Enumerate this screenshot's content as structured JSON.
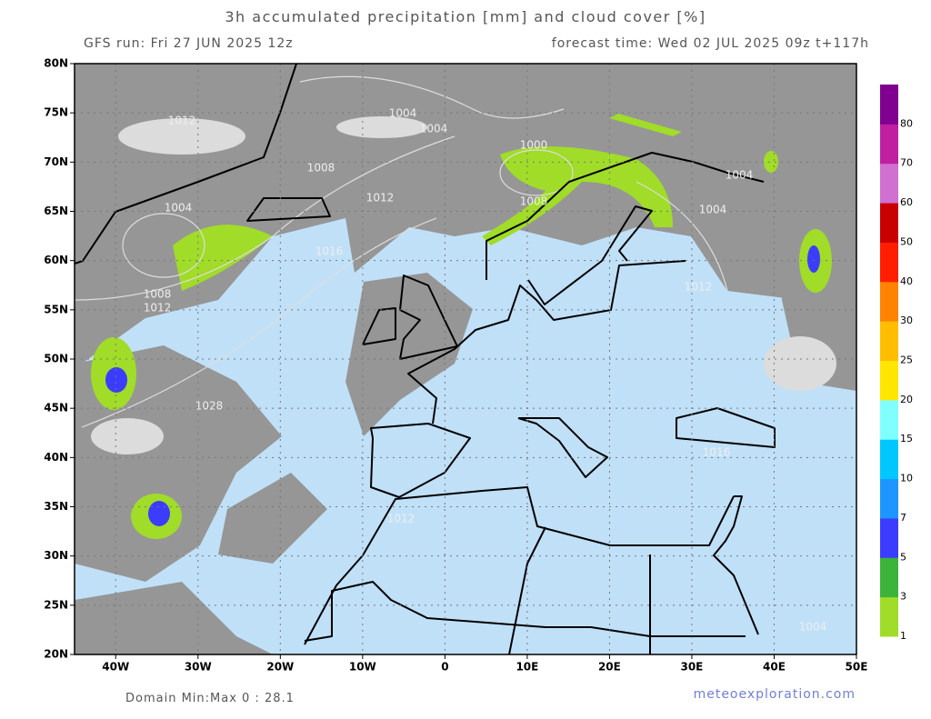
{
  "header": {
    "title": "3h accumulated precipitation [mm] and cloud cover [%]",
    "run": "GFS run: Fri 27 JUN 2025 12z",
    "forecast": "forecast time: Wed 02 JUL 2025 09z  t+117h"
  },
  "map": {
    "lonlim": [
      -45,
      50
    ],
    "latlim": [
      20,
      80
    ],
    "lon_ticks": [
      {
        "value": -40,
        "label": "40W"
      },
      {
        "value": -30,
        "label": "30W"
      },
      {
        "value": -20,
        "label": "20W"
      },
      {
        "value": -10,
        "label": "10W"
      },
      0,
      {
        "value": 10,
        "label": "10E"
      },
      {
        "value": 20,
        "label": "20E"
      },
      {
        "value": 30,
        "label": "30E"
      },
      {
        "value": 40,
        "label": "40E"
      },
      {
        "value": 50,
        "label": "50E"
      }
    ],
    "lat_ticks": [
      {
        "value": 20,
        "label": "20N"
      },
      {
        "value": 25,
        "label": "25N"
      },
      {
        "value": 30,
        "label": "30N"
      },
      {
        "value": 35,
        "label": "35N"
      },
      {
        "value": 40,
        "label": "40N"
      },
      {
        "value": 45,
        "label": "45N"
      },
      {
        "value": 50,
        "label": "50N"
      },
      {
        "value": 55,
        "label": "55N"
      },
      {
        "value": 60,
        "label": "60N"
      },
      {
        "value": 65,
        "label": "65N"
      },
      {
        "value": 70,
        "label": "70N"
      },
      {
        "value": 75,
        "label": "75N"
      },
      {
        "value": 80,
        "label": "80N"
      }
    ],
    "grid": true,
    "isobar_labels": [
      1012,
      1004,
      1004,
      1000,
      1008,
      1012,
      1004,
      1008,
      1004,
      1004,
      1016,
      1008,
      1012,
      1012,
      1028,
      1016,
      1012,
      1004
    ]
  },
  "colorbar": {
    "levels": [
      1,
      3,
      5,
      7,
      10,
      15,
      20,
      25,
      30,
      40,
      50,
      60,
      70,
      80
    ],
    "colors": [
      "#a0dc28",
      "#3cb43c",
      "#3c3cff",
      "#1e96ff",
      "#00c8ff",
      "#80ffff",
      "#ffe600",
      "#ffbe00",
      "#ff8200",
      "#ff1e00",
      "#c80000",
      "#d070d0",
      "#c020a0",
      "#800090"
    ]
  },
  "footer": {
    "domain": "Domain Min:Max 0 : 28.1",
    "credit": "meteoexploration.com"
  }
}
